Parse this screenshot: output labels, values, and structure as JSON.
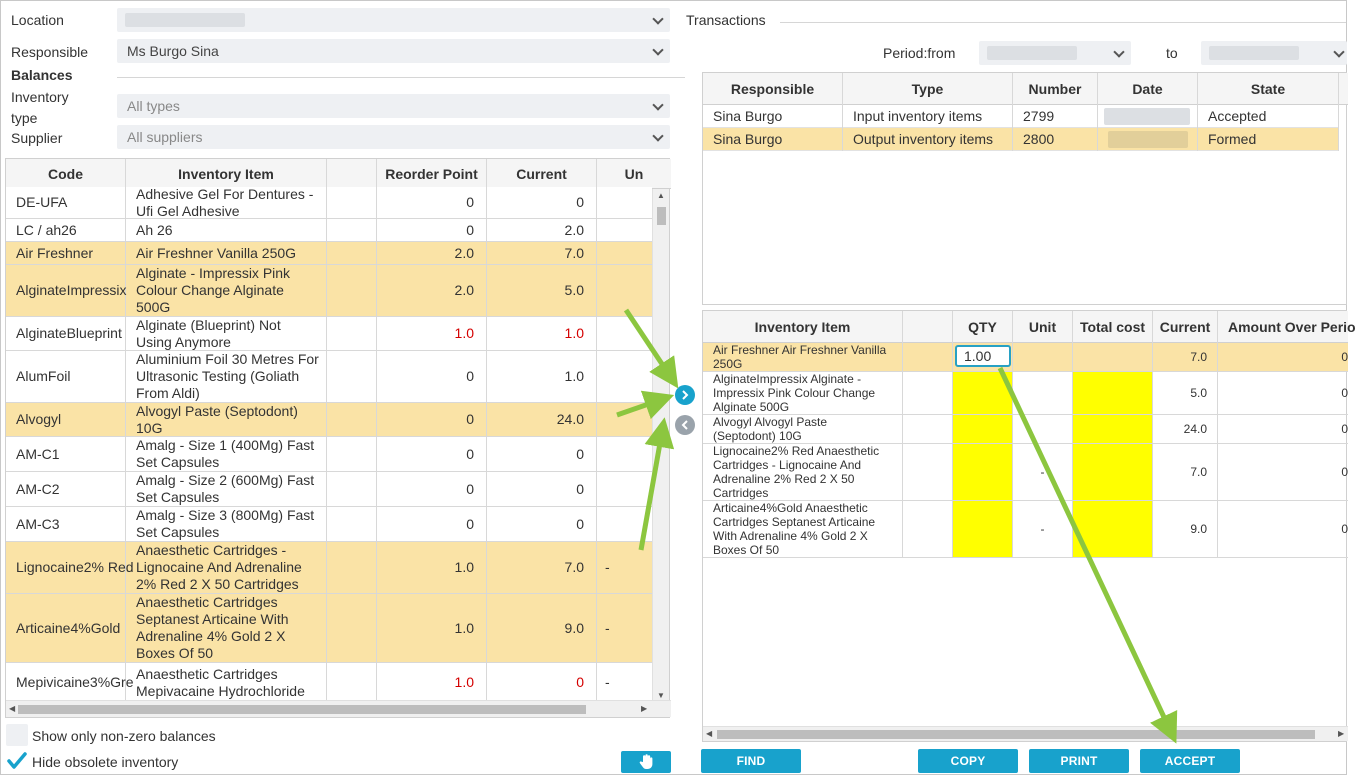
{
  "filters": {
    "location_label": "Location",
    "responsible_label": "Responsible",
    "responsible_value": "Ms Burgo Sina",
    "balances_heading": "Balances",
    "inventory_type_label_line1": "Inventory",
    "inventory_type_label_line2": "type",
    "inventory_type_value": "All types",
    "supplier_label": "Supplier",
    "supplier_value": "All suppliers"
  },
  "balances_grid": {
    "columns": [
      "Code",
      "Inventory Item",
      "",
      "Reorder Point",
      "Current",
      "Un"
    ],
    "rows": [
      {
        "code": "DE-UFA",
        "item": "Adhesive Gel For Dentures - Ufi Gel Adhesive",
        "reorder": "0",
        "current": "0",
        "unit": "",
        "highlight": false,
        "low": false
      },
      {
        "code": "LC / ah26",
        "item": "Ah 26",
        "reorder": "0",
        "current": "2.0",
        "unit": "",
        "highlight": false,
        "low": false
      },
      {
        "code": "Air Freshner",
        "item": "Air Freshner Vanilla 250G",
        "reorder": "2.0",
        "current": "7.0",
        "unit": "",
        "highlight": true,
        "low": false
      },
      {
        "code": "AlginateImpressix",
        "item": "Alginate - Impressix Pink Colour Change Alginate 500G",
        "reorder": "2.0",
        "current": "5.0",
        "unit": "",
        "highlight": true,
        "low": false
      },
      {
        "code": "AlginateBlueprint",
        "item": "Alginate (Blueprint) Not Using Anymore",
        "reorder": "1.0",
        "current": "1.0",
        "unit": "",
        "highlight": false,
        "low": true
      },
      {
        "code": "AlumFoil",
        "item": "Aluminium Foil 30 Metres For Ultrasonic Testing (Goliath From Aldi)",
        "reorder": "0",
        "current": "1.0",
        "unit": "",
        "highlight": false,
        "low": false
      },
      {
        "code": "Alvogyl",
        "item": "Alvogyl Paste (Septodont) 10G",
        "reorder": "0",
        "current": "24.0",
        "unit": "",
        "highlight": true,
        "low": false
      },
      {
        "code": "AM-C1",
        "item": "Amalg - Size 1 (400Mg) Fast Set Capsules",
        "reorder": "0",
        "current": "0",
        "unit": "",
        "highlight": false,
        "low": false
      },
      {
        "code": "AM-C2",
        "item": "Amalg - Size 2 (600Mg) Fast Set Capsules",
        "reorder": "0",
        "current": "0",
        "unit": "",
        "highlight": false,
        "low": false
      },
      {
        "code": "AM-C3",
        "item": "Amalg - Size 3 (800Mg) Fast Set Capsules",
        "reorder": "0",
        "current": "0",
        "unit": "",
        "highlight": false,
        "low": false
      },
      {
        "code": "Lignocaine2% Red",
        "item": "Anaesthetic Cartridges - Lignocaine And Adrenaline 2% Red 2 X 50 Cartridges",
        "reorder": "1.0",
        "current": "7.0",
        "unit": "-",
        "highlight": true,
        "low": false
      },
      {
        "code": "Articaine4%Gold",
        "item": "Anaesthetic Cartridges Septanest Articaine With Adrenaline 4% Gold 2 X Boxes Of 50",
        "reorder": "1.0",
        "current": "9.0",
        "unit": "-",
        "highlight": true,
        "low": false
      },
      {
        "code": "Mepivicaine3%Gre",
        "item": "Anaesthetic Cartridges Mepivacaine Hydrochloride",
        "reorder": "1.0",
        "current": "0",
        "unit": "-",
        "highlight": false,
        "low": true
      }
    ]
  },
  "options": {
    "non_zero_label": "Show only non-zero balances",
    "hide_obsolete_label": "Hide obsolete inventory"
  },
  "transactions": {
    "title": "Transactions",
    "period_from_label": "Period:from",
    "to_label": "to",
    "columns": [
      "Responsible",
      "Type",
      "Number",
      "Date",
      "State"
    ],
    "rows": [
      {
        "responsible": "Sina Burgo",
        "type": "Input inventory items",
        "number": "2799",
        "state": "Accepted",
        "highlight": false
      },
      {
        "responsible": "Sina Burgo",
        "type": "Output inventory items",
        "number": "2800",
        "state": "Formed",
        "highlight": true
      }
    ]
  },
  "document_items": {
    "columns": [
      "Inventory Item",
      "",
      "QTY",
      "Unit",
      "Total cost",
      "Current",
      "Amount Over Perio"
    ],
    "rows": [
      {
        "item": "Air Freshner Air Freshner Vanilla 250G",
        "qty": "1.00",
        "unit": "",
        "current": "7.0",
        "amount": "0",
        "highlight": true
      },
      {
        "item": "AlginateImpressix Alginate - Impressix Pink Colour Change Alginate 500G",
        "qty": "",
        "unit": "",
        "current": "5.0",
        "amount": "0",
        "highlight": false
      },
      {
        "item": "Alvogyl Alvogyl Paste (Septodont) 10G",
        "qty": "",
        "unit": "",
        "current": "24.0",
        "amount": "0",
        "highlight": false
      },
      {
        "item": "Lignocaine2% Red Anaesthetic Cartridges - Lignocaine And Adrenaline 2% Red 2 X 50 Cartridges",
        "qty": "",
        "unit": "-",
        "current": "7.0",
        "amount": "0",
        "highlight": false
      },
      {
        "item": "Articaine4%Gold Anaesthetic Cartridges Septanest Articaine With Adrenaline 4% Gold 2 X Boxes Of 50",
        "qty": "",
        "unit": "-",
        "current": "9.0",
        "amount": "0",
        "highlight": false
      }
    ]
  },
  "buttons": {
    "find": "FIND",
    "copy": "COPY",
    "print": "PRINT",
    "accept": "ACCEPT"
  },
  "icons": {
    "move_right": "chevron-right-icon",
    "move_left": "chevron-left-icon",
    "hand": "hand-pointer-icon",
    "checkmark": "checkmark-icon"
  },
  "colors": {
    "accent": "#18a2cc",
    "row_highlight": "#fae3a6",
    "input_missing": "#ffff00",
    "low_stock": "#d40000",
    "annotation_arrow": "#8cc63f"
  }
}
